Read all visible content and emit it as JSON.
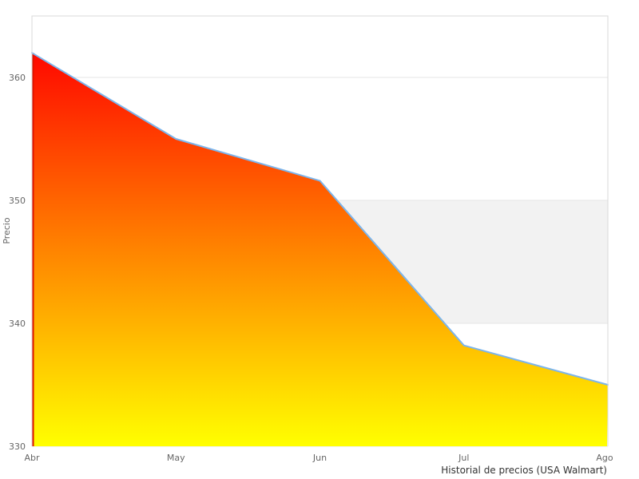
{
  "chart_data": {
    "type": "area",
    "title": "",
    "categories": [
      "Abr",
      "May",
      "Jun",
      "Jul",
      "Ago"
    ],
    "values": [
      362,
      355,
      351.6,
      338.2,
      335
    ],
    "series_name": "Precio",
    "xlabel": "",
    "ylabel": "Precio",
    "footer": "Historial de precios (USA Walmart)",
    "ylim": [
      330,
      365
    ],
    "yticks": [
      330,
      340,
      350,
      360
    ],
    "grid": true,
    "legend": "none",
    "plot_band": {
      "from": 340,
      "to": 350,
      "color": "#f2f2f2"
    },
    "colors": {
      "area_gradient_top": "#ff0800",
      "area_gradient_bottom": "#ffff00",
      "line": "#7cb5ec",
      "area_left_edge": "#dd1400",
      "grid_line": "#e4e4e4",
      "plot_border": "#d8d8d8",
      "tick_label": "#666666",
      "axis_title": "#666666",
      "footer_text": "#333333",
      "background": "#ffffff"
    }
  }
}
